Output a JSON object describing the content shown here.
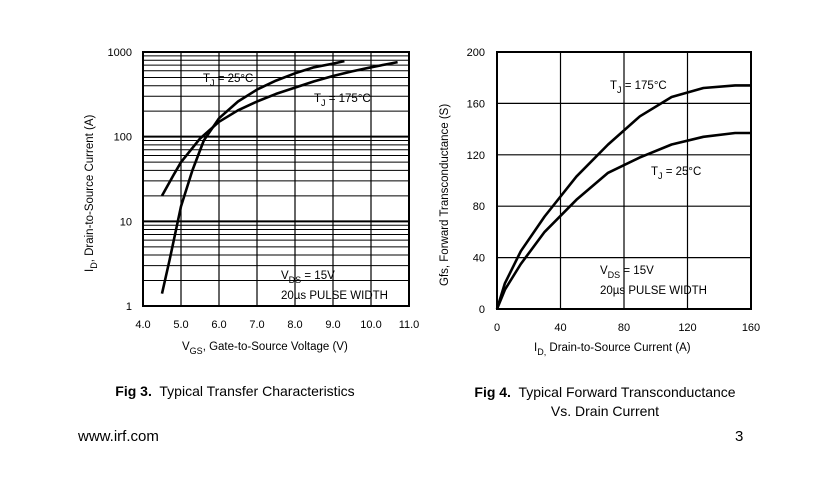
{
  "chart_data": [
    {
      "type": "line",
      "caption_num": "Fig 3.",
      "caption_text": "Typical Transfer Characteristics",
      "xlabel_main": "V",
      "xlabel_sub": "GS",
      "xlabel_rest": ", Gate-to-Source Voltage (V)",
      "ylabel_main": "I",
      "ylabel_sub": "D",
      "ylabel_rest": ", Drain-to-Source Current   (A)",
      "xlim": [
        4.0,
        11.0
      ],
      "ylim": [
        1,
        1000
      ],
      "y_scale": "log",
      "x_ticks": [
        "4.0",
        "5.0",
        "6.0",
        "7.0",
        "8.0",
        "9.0",
        "10.0",
        "11.0"
      ],
      "y_ticks": [
        "1",
        "10",
        "100",
        "1000"
      ],
      "grid": true,
      "series": [
        {
          "name": "T_J = 25°C",
          "x": [
            4.5,
            4.7,
            5.0,
            5.3,
            5.6,
            6.0,
            6.5,
            7.0,
            7.5,
            8.0,
            8.5,
            9.0,
            9.3
          ],
          "y": [
            1.4,
            3.5,
            15,
            40,
            90,
            165,
            260,
            360,
            460,
            560,
            660,
            730,
            780
          ]
        },
        {
          "name": "T_J = 175°C",
          "x": [
            4.5,
            4.8,
            5.0,
            5.5,
            6.0,
            6.5,
            7.0,
            7.5,
            8.0,
            8.5,
            9.0,
            9.5,
            10.0,
            10.5,
            10.7
          ],
          "y": [
            20,
            35,
            50,
            95,
            150,
            205,
            260,
            320,
            380,
            450,
            520,
            590,
            660,
            730,
            760
          ]
        }
      ],
      "series_labels": [
        {
          "pre": "T",
          "sub": "J",
          "post": " = 25°C"
        },
        {
          "pre": "T",
          "sub": "J",
          "post": " = 175°C"
        }
      ],
      "annotation": {
        "line1_pre": "V",
        "line1_sub": "DS",
        "line1_post": " = 15V",
        "line2": "20µs PULSE WIDTH"
      }
    },
    {
      "type": "line",
      "caption_num": "Fig 4.",
      "caption_text": "Typical Forward Transconductance",
      "caption_line2": "Vs. Drain Current",
      "xlabel_main": "I",
      "xlabel_sub": "D,",
      "xlabel_rest": " Drain-to-Source Current (A)",
      "ylabel": "Gfs, Forward Transconductance (S)",
      "xlim": [
        0,
        160
      ],
      "ylim": [
        0,
        200
      ],
      "x_ticks": [
        "0",
        "40",
        "80",
        "120",
        "160"
      ],
      "y_ticks": [
        "0",
        "40",
        "80",
        "120",
        "160",
        "200"
      ],
      "grid": true,
      "series": [
        {
          "name": "T_J = 175°C",
          "x": [
            0,
            5,
            15,
            30,
            50,
            70,
            90,
            110,
            130,
            150,
            160
          ],
          "y": [
            0,
            20,
            45,
            72,
            103,
            128,
            150,
            165,
            172,
            174,
            174
          ]
        },
        {
          "name": "T_J = 25°C",
          "x": [
            0,
            5,
            15,
            30,
            50,
            70,
            90,
            110,
            130,
            150,
            160
          ],
          "y": [
            0,
            15,
            35,
            60,
            85,
            106,
            118,
            128,
            134,
            137,
            137
          ]
        }
      ],
      "series_labels": [
        {
          "pre": "T",
          "sub": "J",
          "post": " = 175°C"
        },
        {
          "pre": "T",
          "sub": "J",
          "post": " = 25°C"
        }
      ],
      "annotation": {
        "line1_pre": "V",
        "line1_sub": "DS",
        "line1_post": " = 15V",
        "line2": "20µs PULSE WIDTH"
      }
    }
  ],
  "footer": {
    "website": "www.irf.com",
    "page_number": "3"
  }
}
